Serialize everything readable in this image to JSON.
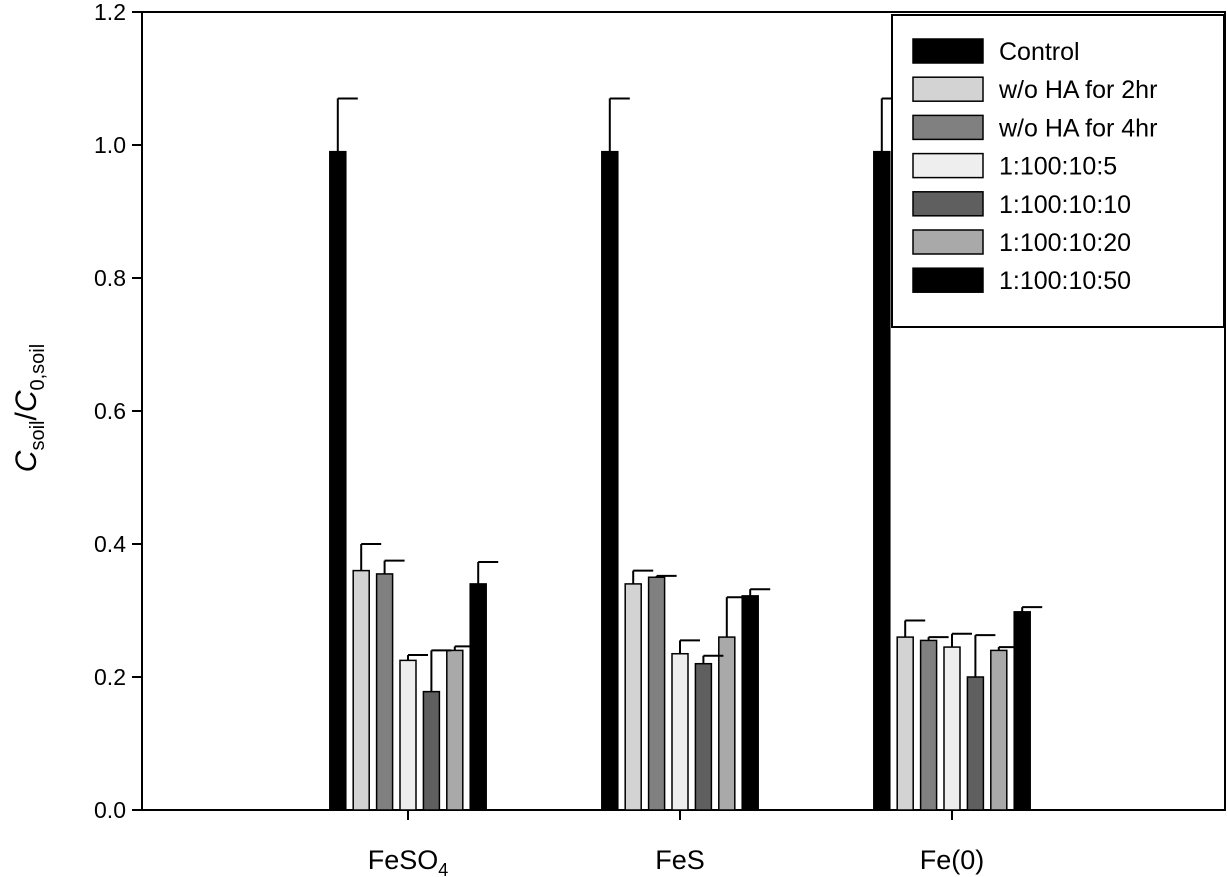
{
  "chart_data": {
    "type": "bar",
    "categories": [
      {
        "main": "FeSO",
        "sub": "4"
      },
      {
        "main": "FeS",
        "sub": ""
      },
      {
        "main": "Fe(0)",
        "sub": ""
      }
    ],
    "ylabel": {
      "c1": "C",
      "s1": "soil",
      "slash": "/",
      "c2": "C",
      "s2": "0,soil"
    },
    "xlabel": "",
    "ylim": [
      0,
      1.2
    ],
    "yticks": [
      "0.0",
      "0.2",
      "0.4",
      "0.6",
      "0.8",
      "1.0",
      "1.2"
    ],
    "series": [
      {
        "name": "Control",
        "color": "#000000",
        "values": [
          0.99,
          0.99,
          0.99
        ],
        "errors": [
          0.08,
          0.08,
          0.08
        ]
      },
      {
        "name": "w/o HA for 2hr",
        "color": "#d3d3d3",
        "values": [
          0.36,
          0.34,
          0.26
        ],
        "errors": [
          0.04,
          0.02,
          0.025
        ]
      },
      {
        "name": "w/o HA for 4hr",
        "color": "#808080",
        "values": [
          0.355,
          0.35,
          0.255
        ],
        "errors": [
          0.02,
          0.002,
          0.005
        ]
      },
      {
        "name": "1:100:10:5",
        "color": "#eeeeee",
        "values": [
          0.225,
          0.235,
          0.245
        ],
        "errors": [
          0.008,
          0.02,
          0.02
        ]
      },
      {
        "name": "1:100:10:10",
        "color": "#5f5f5f",
        "values": [
          0.178,
          0.22,
          0.2
        ],
        "errors": [
          0.062,
          0.012,
          0.063
        ]
      },
      {
        "name": "1:100:10:20",
        "color": "#a9a9a9",
        "values": [
          0.24,
          0.26,
          0.24
        ],
        "errors": [
          0.006,
          0.06,
          0.005
        ]
      },
      {
        "name": "1:100:10:50",
        "color": "#000000",
        "values": [
          0.34,
          0.322,
          0.298
        ],
        "errors": [
          0.033,
          0.01,
          0.007
        ]
      }
    ],
    "legend_position": "top-right",
    "grid": false
  }
}
